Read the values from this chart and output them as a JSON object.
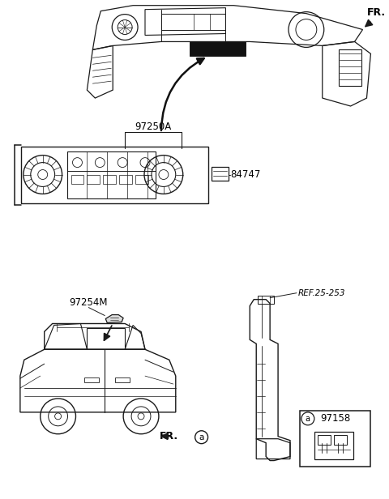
{
  "bg_color": "#ffffff",
  "line_color": "#1a1a1a",
  "label_color": "#000000",
  "fig_width": 4.8,
  "fig_height": 6.16,
  "dpi": 100,
  "labels": {
    "FR_top": "FR.",
    "97250A": "97250A",
    "84747": "84747",
    "97254M": "97254M",
    "REF_25_253": "REF.25-253",
    "FR_bottom": "FR.",
    "a_circle": "a",
    "97158": "97158",
    "a_box": "a"
  }
}
